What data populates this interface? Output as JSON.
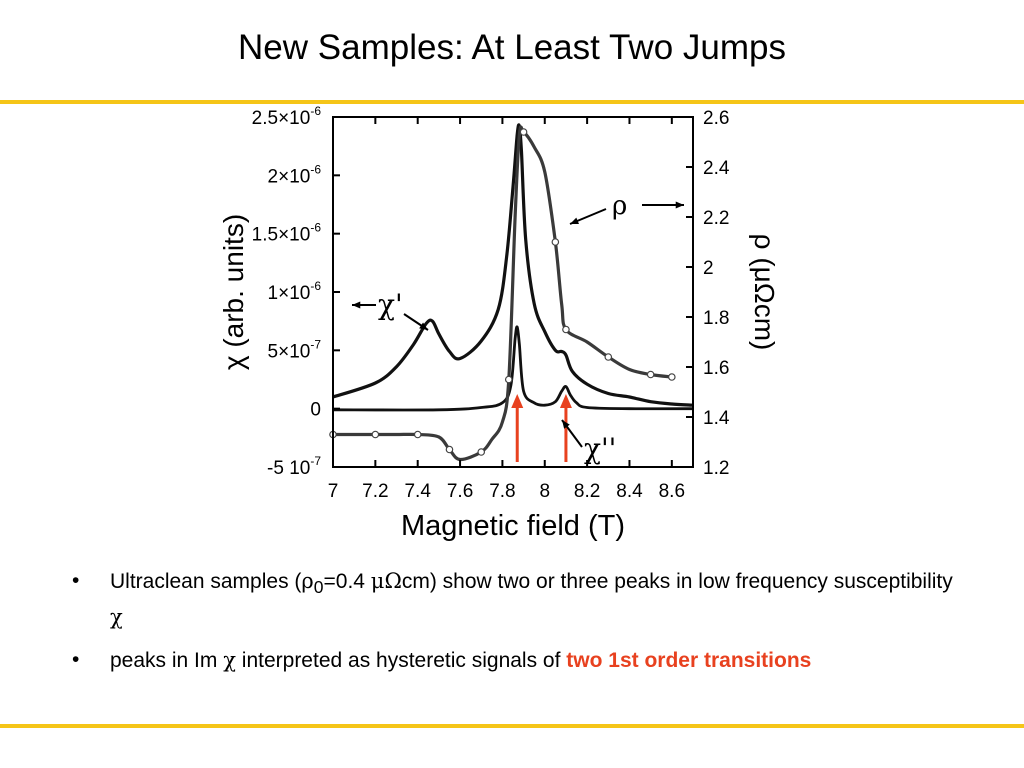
{
  "slide": {
    "title": "New Samples: At Least Two Jumps",
    "accent_color": "#f5c518",
    "highlight_color": "#e8411f"
  },
  "bullets": [
    {
      "bullet_char": "•",
      "text_1": "Ultraclean samples (",
      "rho": "ρ",
      "sub0": "0",
      "text_2": "=0.4 ",
      "mu_omega": "μΩ",
      "text_3": "cm) show two or three peaks in low frequency susceptibility ",
      "chi": "χ"
    },
    {
      "bullet_char": "•",
      "text_1": "peaks in Im ",
      "chi": "χ",
      "text_2": " interpreted as hysteretic signals of ",
      "highlight": "two 1st order transitions"
    }
  ],
  "chart_data": {
    "type": "line",
    "xlabel": "Magnetic field (T)",
    "ylabel_left": "χ (arb. units)",
    "ylabel_right": "ρ (μΩcm)",
    "xlim": [
      7,
      8.7
    ],
    "ylim_left": [
      -5e-07,
      2.5e-06
    ],
    "ylim_right": [
      1.2,
      2.6
    ],
    "x_ticks": [
      "7",
      "7.2",
      "7.4",
      "7.6",
      "7.8",
      "8",
      "8.2",
      "8.4",
      "8.6"
    ],
    "y_left_ticks": [
      {
        "value": 2.5e-06,
        "mant": "2.5×10",
        "exp": "-6"
      },
      {
        "value": 2e-06,
        "mant": "2×10",
        "exp": "-6"
      },
      {
        "value": 1.5e-06,
        "mant": "1.5×10",
        "exp": "-6"
      },
      {
        "value": 1e-06,
        "mant": "1×10",
        "exp": "-6"
      },
      {
        "value": 5e-07,
        "mant": "5×10",
        "exp": "-7"
      },
      {
        "value": 0,
        "mant": "0",
        "exp": ""
      },
      {
        "value": -5e-07,
        "mant": "-5  10",
        "exp": "-7"
      }
    ],
    "y_right_ticks": [
      "2.6",
      "2.4",
      "2.2",
      "2",
      "1.8",
      "1.6",
      "1.4",
      "1.2"
    ],
    "series": [
      {
        "name": "χ'",
        "axis": "left",
        "x": [
          7.0,
          7.2,
          7.3,
          7.38,
          7.44,
          7.47,
          7.5,
          7.55,
          7.6,
          7.7,
          7.78,
          7.82,
          7.85,
          7.87,
          7.88,
          7.89,
          7.91,
          7.95,
          8.0,
          8.05,
          8.08,
          8.1,
          8.13,
          8.2,
          8.3,
          8.4,
          8.5,
          8.6,
          8.7
        ],
        "y": [
          1e-07,
          2.2e-07,
          3.6e-07,
          5.5e-07,
          7.3e-07,
          7.5e-07,
          6.4e-07,
          4.9e-07,
          4.3e-07,
          5.8e-07,
          8.5e-07,
          1.3e-06,
          1.9e-06,
          2.35e-06,
          2.42e-06,
          2.2e-06,
          1.45e-06,
          9e-07,
          6.6e-07,
          5e-07,
          4.9e-07,
          4.6e-07,
          3.2e-07,
          2.1e-07,
          1.3e-07,
          1e-07,
          6e-08,
          4e-08,
          3e-08
        ]
      },
      {
        "name": "χ''",
        "axis": "left",
        "x": [
          7.0,
          7.5,
          7.7,
          7.8,
          7.84,
          7.86,
          7.87,
          7.88,
          7.9,
          7.95,
          8.0,
          8.05,
          8.08,
          8.1,
          8.12,
          8.15,
          8.2,
          8.4,
          8.7
        ],
        "y": [
          -1e-08,
          -1e-08,
          1e-08,
          5e-08,
          2e-07,
          6e-07,
          7e-07,
          5.5e-07,
          1.5e-07,
          5e-08,
          3e-08,
          6e-08,
          1.5e-07,
          1.9e-07,
          1.2e-07,
          5e-08,
          1e-08,
          0,
          0
        ]
      },
      {
        "name": "ρ",
        "axis": "right",
        "x": [
          7.0,
          7.1,
          7.2,
          7.3,
          7.4,
          7.5,
          7.55,
          7.6,
          7.7,
          7.75,
          7.8,
          7.83,
          7.86,
          7.88,
          7.9,
          7.95,
          8.0,
          8.05,
          8.08,
          8.1,
          8.2,
          8.3,
          8.4,
          8.5,
          8.6
        ],
        "y": [
          1.33,
          1.33,
          1.33,
          1.33,
          1.33,
          1.32,
          1.27,
          1.23,
          1.26,
          1.31,
          1.38,
          1.55,
          2.2,
          2.53,
          2.54,
          2.48,
          2.38,
          2.1,
          1.85,
          1.75,
          1.7,
          1.64,
          1.59,
          1.57,
          1.56
        ]
      }
    ],
    "annotations": [
      {
        "label": "χ'",
        "arrow": "left"
      },
      {
        "label": "χ''",
        "arrow": "left"
      },
      {
        "label": "ρ",
        "arrow": "both"
      }
    ],
    "markers_x": [
      7.87,
      8.1
    ],
    "grid": false
  }
}
